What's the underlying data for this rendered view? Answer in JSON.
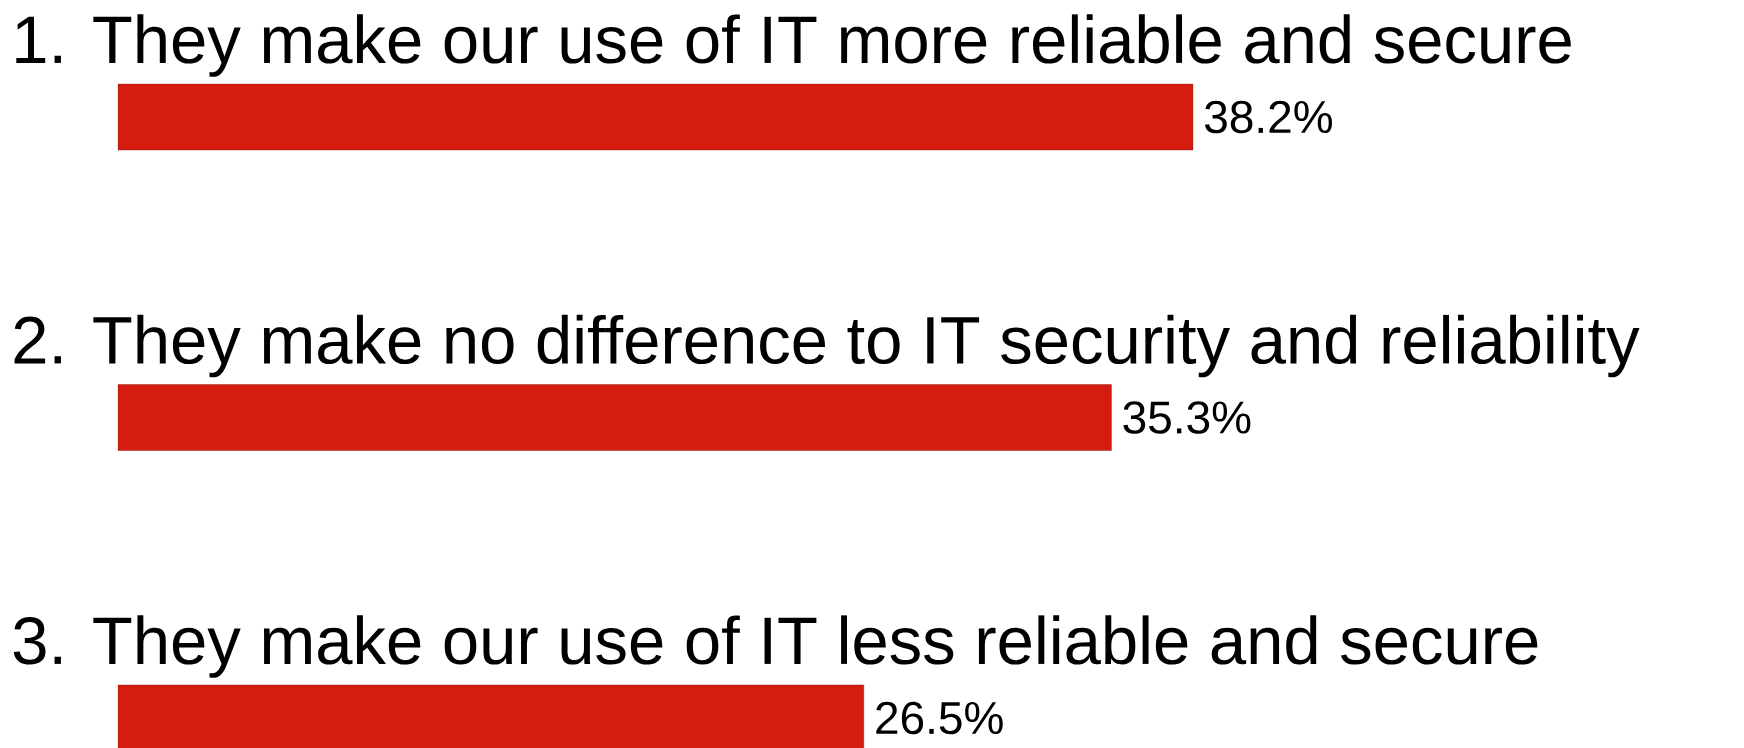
{
  "chart_data": {
    "type": "bar",
    "orientation": "horizontal",
    "categories": [
      "1. They make our use of IT more reliable and secure",
      "2. They make no difference to IT security and reliability",
      "3. They make our use of IT less reliable and secure"
    ],
    "values": [
      38.2,
      35.3,
      26.5
    ],
    "value_labels": [
      "38.2%",
      "35.3%",
      "26.5%"
    ],
    "color": "#d41c10"
  }
}
